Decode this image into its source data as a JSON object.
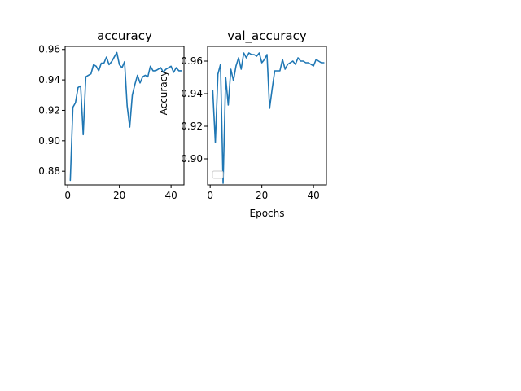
{
  "chart_data": [
    {
      "type": "line",
      "title": "accuracy",
      "xlabel": "",
      "ylabel": "",
      "xlim": [
        -1,
        45
      ],
      "ylim": [
        0.871,
        0.962
      ],
      "xticks": [
        0,
        20,
        40
      ],
      "yticks": [
        0.88,
        0.9,
        0.92,
        0.94,
        0.96
      ],
      "ytick_labels": [
        "0.88",
        "0.90",
        "0.92",
        "0.94",
        "0.96"
      ],
      "grid": false,
      "series": [
        {
          "color": "#1f77b4",
          "x": [
            1,
            2,
            3,
            4,
            5,
            6,
            7,
            8,
            9,
            10,
            11,
            12,
            13,
            14,
            15,
            16,
            17,
            18,
            19,
            20,
            21,
            22,
            23,
            24,
            25,
            26,
            27,
            28,
            29,
            30,
            31,
            32,
            33,
            34,
            35,
            36,
            37,
            38,
            39,
            40,
            41,
            42,
            43,
            44
          ],
          "y": [
            0.874,
            0.922,
            0.925,
            0.935,
            0.936,
            0.904,
            0.942,
            0.943,
            0.944,
            0.95,
            0.949,
            0.946,
            0.951,
            0.951,
            0.955,
            0.95,
            0.952,
            0.955,
            0.958,
            0.95,
            0.948,
            0.952,
            0.923,
            0.909,
            0.93,
            0.937,
            0.943,
            0.938,
            0.942,
            0.943,
            0.942,
            0.949,
            0.946,
            0.946,
            0.947,
            0.948,
            0.945,
            0.947,
            0.948,
            0.949,
            0.945,
            0.948,
            0.946,
            0.946
          ]
        }
      ]
    },
    {
      "type": "line",
      "title": "val_accuracy",
      "xlabel": "Epochs",
      "ylabel": "Accuracy",
      "xlim": [
        -1,
        45
      ],
      "ylim": [
        0.884,
        0.969
      ],
      "xticks": [
        0,
        20,
        40
      ],
      "yticks": [
        0.9,
        0.92,
        0.94,
        0.96
      ],
      "ytick_labels": [
        "0.90",
        "0.92",
        "0.94",
        "0.96"
      ],
      "grid": false,
      "legend": "lower-left",
      "series": [
        {
          "color": "#1f77b4",
          "x": [
            1,
            2,
            3,
            4,
            5,
            6,
            7,
            8,
            9,
            10,
            11,
            12,
            13,
            14,
            15,
            16,
            17,
            18,
            19,
            20,
            21,
            22,
            23,
            24,
            25,
            26,
            27,
            28,
            29,
            30,
            31,
            32,
            33,
            34,
            35,
            36,
            37,
            38,
            39,
            40,
            41,
            42,
            43,
            44
          ],
          "y": [
            0.942,
            0.91,
            0.952,
            0.958,
            0.885,
            0.95,
            0.933,
            0.955,
            0.948,
            0.957,
            0.962,
            0.955,
            0.965,
            0.962,
            0.965,
            0.964,
            0.964,
            0.963,
            0.965,
            0.959,
            0.961,
            0.964,
            0.931,
            0.943,
            0.954,
            0.954,
            0.954,
            0.961,
            0.955,
            0.958,
            0.959,
            0.96,
            0.958,
            0.962,
            0.96,
            0.96,
            0.959,
            0.959,
            0.958,
            0.957,
            0.961,
            0.96,
            0.959,
            0.959
          ]
        }
      ]
    }
  ]
}
